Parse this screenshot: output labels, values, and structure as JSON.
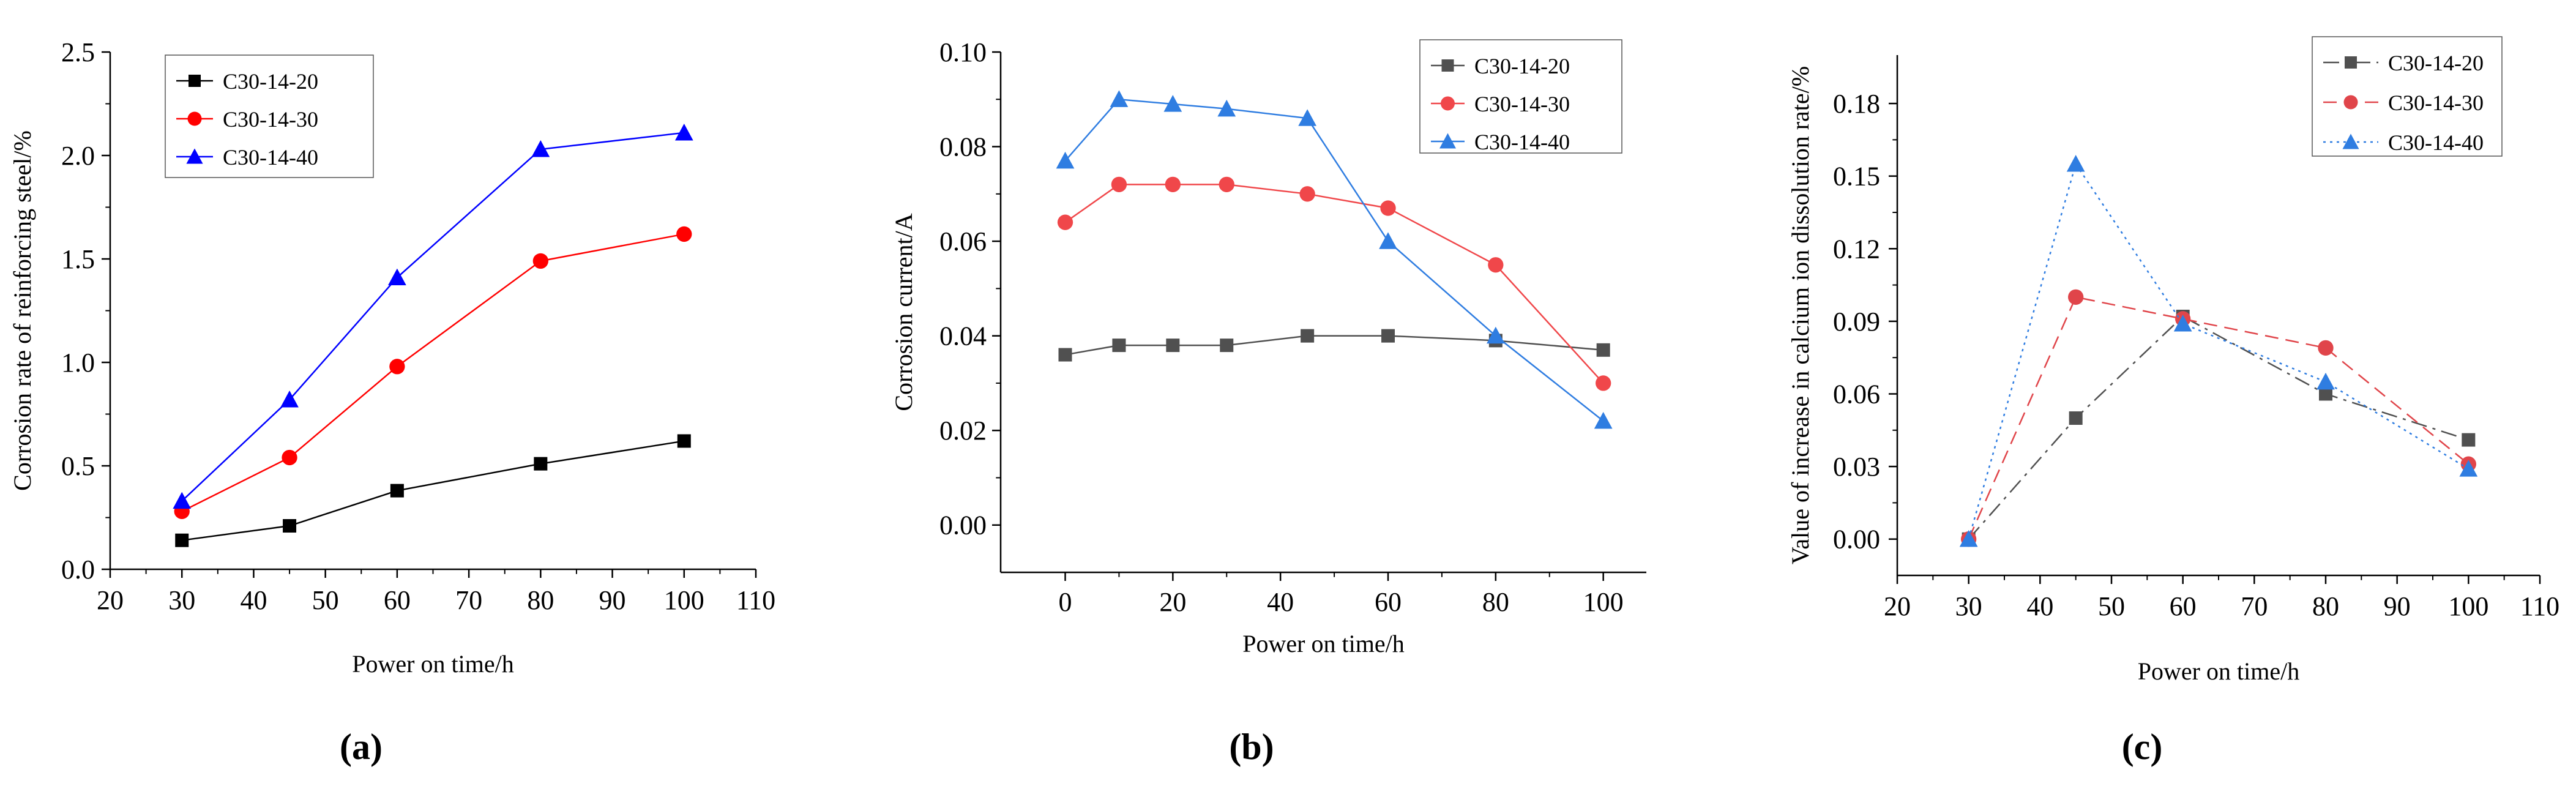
{
  "chart_data": [
    {
      "id": "a",
      "type": "line",
      "panel_label": "(a)",
      "xlabel": "Power on time/h",
      "ylabel": "Corrosion rate of reinforcing steel/%",
      "xlim": [
        20,
        110
      ],
      "ylim": [
        0,
        2.5
      ],
      "xticks": [
        "20",
        "30",
        "40",
        "50",
        "60",
        "70",
        "80",
        "90",
        "100",
        "110"
      ],
      "yticks": [
        "0.0",
        "0.5",
        "1.0",
        "1.5",
        "2.0",
        "2.5"
      ],
      "legend_position": "top-left",
      "series": [
        {
          "name": "C30-14-20",
          "color": "#000000",
          "marker": "square",
          "dash": "solid",
          "x": [
            30,
            45,
            60,
            80,
            100
          ],
          "y": [
            0.14,
            0.21,
            0.38,
            0.51,
            0.62
          ]
        },
        {
          "name": "C30-14-30",
          "color": "#ff0000",
          "marker": "circle",
          "dash": "solid",
          "x": [
            30,
            45,
            60,
            80,
            100
          ],
          "y": [
            0.28,
            0.54,
            0.98,
            1.49,
            1.62
          ]
        },
        {
          "name": "C30-14-40",
          "color": "#0000ff",
          "marker": "triangle",
          "dash": "solid",
          "x": [
            30,
            45,
            60,
            80,
            100
          ],
          "y": [
            0.33,
            0.82,
            1.41,
            2.03,
            2.11
          ]
        }
      ]
    },
    {
      "id": "b",
      "type": "line",
      "panel_label": "(b)",
      "xlabel": "Power on time/h",
      "ylabel": "Corrosion current/A",
      "xlim": [
        -12,
        108
      ],
      "ylim": [
        -0.01,
        0.1
      ],
      "xticks": [
        "0",
        "20",
        "40",
        "60",
        "80",
        "100"
      ],
      "yticks": [
        "0.00",
        "0.02",
        "0.04",
        "0.06",
        "0.08",
        "0.10"
      ],
      "legend_position": "top-right",
      "series": [
        {
          "name": "C30-14-20",
          "color": "#505050",
          "marker": "square",
          "dash": "solid",
          "x": [
            0,
            10,
            20,
            30,
            45,
            60,
            80,
            100
          ],
          "y": [
            0.036,
            0.038,
            0.038,
            0.038,
            0.04,
            0.04,
            0.039,
            0.037
          ]
        },
        {
          "name": "C30-14-30",
          "color": "#f0474a",
          "marker": "circle",
          "dash": "solid",
          "x": [
            0,
            10,
            20,
            30,
            45,
            60,
            80,
            100
          ],
          "y": [
            0.064,
            0.072,
            0.072,
            0.072,
            0.07,
            0.067,
            0.055,
            0.03
          ]
        },
        {
          "name": "C30-14-40",
          "color": "#2f7de1",
          "marker": "triangle",
          "dash": "solid",
          "x": [
            0,
            10,
            20,
            30,
            45,
            60,
            80,
            100
          ],
          "y": [
            0.077,
            0.09,
            0.089,
            0.088,
            0.086,
            0.06,
            0.04,
            0.022
          ]
        }
      ]
    },
    {
      "id": "c",
      "type": "line",
      "panel_label": "(c)",
      "xlabel": "Power on time/h",
      "ylabel": "Value of increase in calcium ion dissolution rate/%",
      "xlim": [
        20,
        110
      ],
      "ylim": [
        -0.015,
        0.2
      ],
      "xticks": [
        "20",
        "30",
        "40",
        "50",
        "60",
        "70",
        "80",
        "90",
        "100",
        "110"
      ],
      "yticks": [
        "0.00",
        "0.03",
        "0.06",
        "0.09",
        "0.12",
        "0.15",
        "0.18"
      ],
      "legend_position": "top-right",
      "series": [
        {
          "name": "C30-14-20",
          "color": "#505050",
          "marker": "square",
          "dash": "dashdot",
          "x": [
            30,
            45,
            60,
            80,
            100
          ],
          "y": [
            0.0,
            0.05,
            0.092,
            0.06,
            0.041
          ]
        },
        {
          "name": "C30-14-30",
          "color": "#e0454a",
          "marker": "circle",
          "dash": "dashed",
          "x": [
            30,
            45,
            60,
            80,
            100
          ],
          "y": [
            0.0,
            0.1,
            0.091,
            0.079,
            0.031
          ]
        },
        {
          "name": "C30-14-40",
          "color": "#2f7de1",
          "marker": "triangle",
          "dash": "dotted",
          "x": [
            30,
            45,
            60,
            80,
            100
          ],
          "y": [
            0.0,
            0.155,
            0.089,
            0.065,
            0.029
          ]
        }
      ]
    }
  ]
}
